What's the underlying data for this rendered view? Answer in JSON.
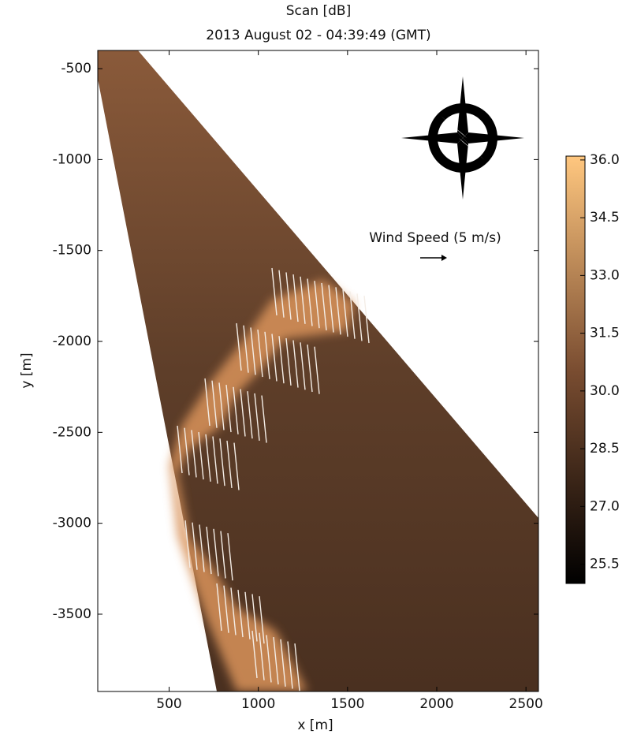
{
  "chart_data": {
    "type": "heatmap",
    "title": "Scan [dB]",
    "subtitle": "2013 August 02 - 04:39:49 (GMT)",
    "x_label": "x [m]",
    "y_label": "y [m]",
    "annotation": "Wind Speed (5 m/s)",
    "colormap": "copper",
    "xlim": [
      100,
      2570
    ],
    "xticks": [
      500,
      1000,
      1500,
      2000,
      2500
    ],
    "ylim": [
      -3925,
      -400
    ],
    "yticks": [
      -500,
      -1000,
      -1500,
      -2000,
      -2500,
      -3000,
      -3500
    ],
    "clim": [
      25.0,
      36.1
    ],
    "cticks": [
      {
        "value": 36.0,
        "label": "36.0"
      },
      34.5,
      {
        "value": 33.0,
        "label": "33.0"
      },
      31.5,
      {
        "value": 30.0,
        "label": "30.0"
      },
      28.5,
      {
        "value": 27.0,
        "label": "27.0"
      },
      25.5
    ]
  }
}
